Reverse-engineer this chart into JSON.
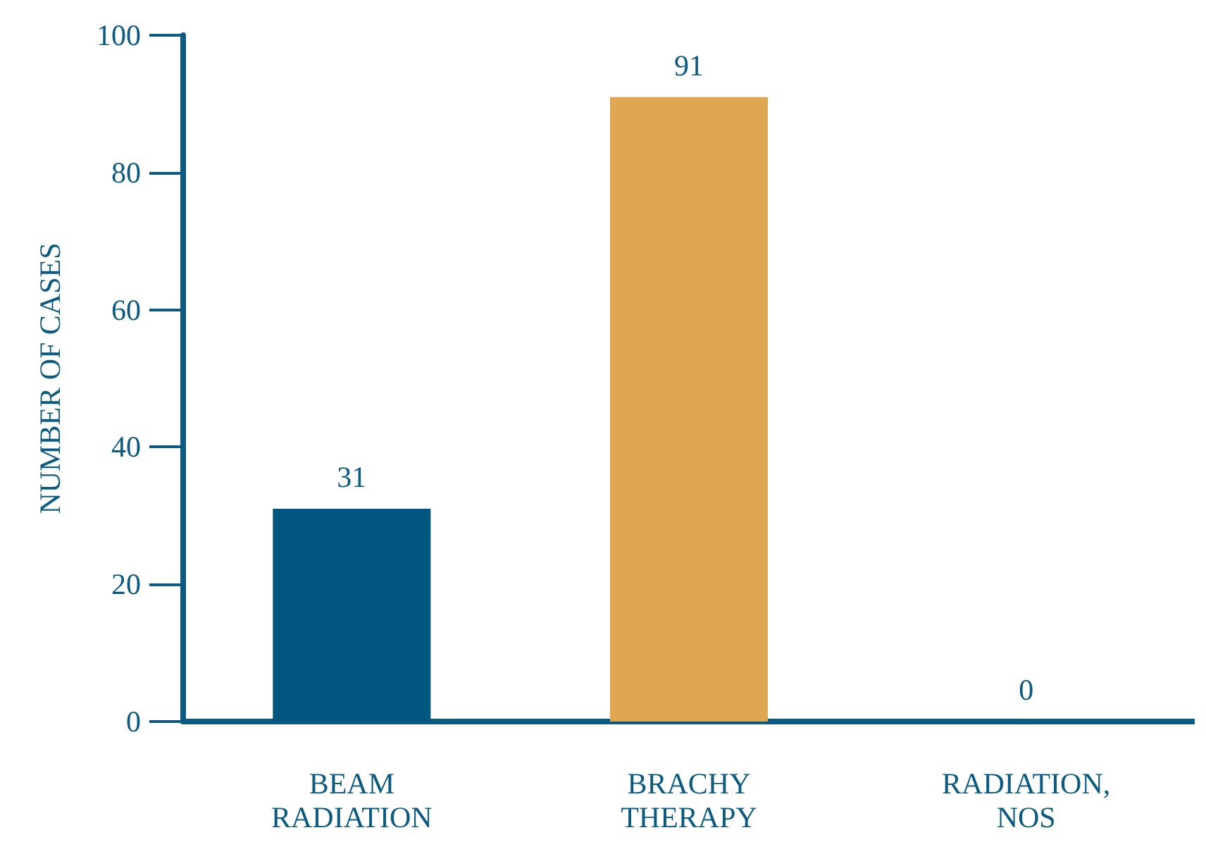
{
  "chart_data": {
    "type": "bar",
    "ylabel": "NUMBER OF CASES",
    "categories": [
      "BEAM RADIATION",
      "BRACHY THERAPY",
      "RADIATION, NOS"
    ],
    "values": [
      31,
      91,
      0
    ],
    "colors": [
      "#00567f",
      "#e0a752",
      "#00567f"
    ],
    "ylim": [
      0,
      100
    ],
    "yticks": [
      0,
      20,
      40,
      60,
      80,
      100
    ],
    "grid": false,
    "data_labels": true
  }
}
